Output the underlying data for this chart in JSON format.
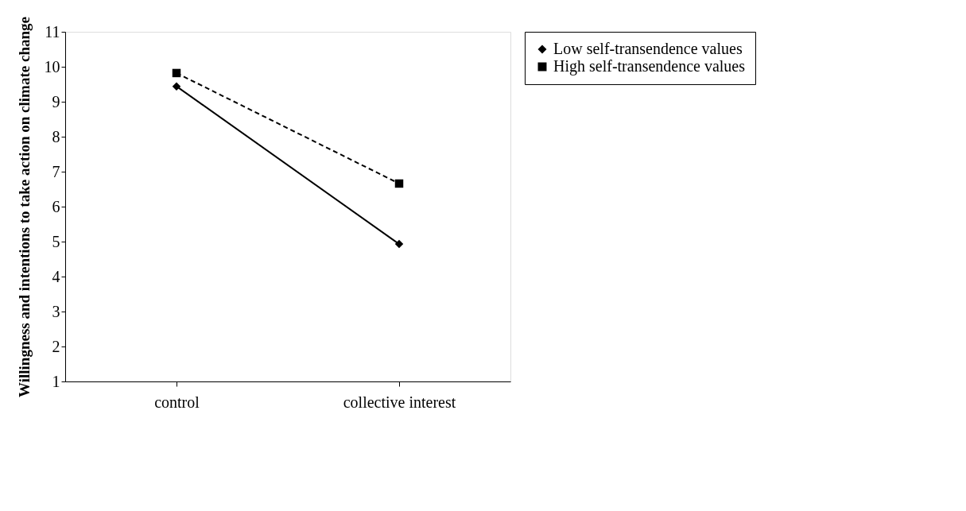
{
  "chart_data": {
    "type": "line",
    "ylabel": "Willingness and intentions to take action on climate change",
    "categories": [
      "control",
      "collective interest"
    ],
    "series": [
      {
        "name": "Low self-transendence values",
        "color": "#000000",
        "values": [
          9.44,
          4.93
        ],
        "marker": "diamond",
        "line_style": "solid"
      },
      {
        "name": "High self-transendence values",
        "color": "#000000",
        "values": [
          9.82,
          6.66
        ],
        "marker": "square",
        "line_style": "dashed"
      }
    ],
    "ylim": [
      1,
      11
    ],
    "yticks": [
      1,
      2,
      3,
      4,
      5,
      6,
      7,
      8,
      9,
      10,
      11
    ],
    "grid": false,
    "legend": "right"
  }
}
